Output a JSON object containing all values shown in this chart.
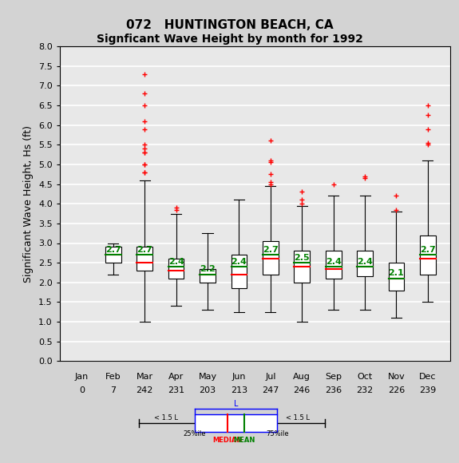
{
  "title1": "072   HUNTINGTON BEACH, CA",
  "title2": "Signficant Wave Height by month for 1992",
  "ylabel": "Significant Wave Height, Hs (ft)",
  "months": [
    "Jan",
    "Feb",
    "Mar",
    "Apr",
    "May",
    "Jun",
    "Jul",
    "Aug",
    "Sep",
    "Oct",
    "Nov",
    "Dec"
  ],
  "counts": [
    0,
    7,
    242,
    231,
    203,
    213,
    247,
    246,
    236,
    232,
    226,
    239
  ],
  "ylim": [
    0.0,
    8.0
  ],
  "yticks": [
    0.0,
    0.5,
    1.0,
    1.5,
    2.0,
    2.5,
    3.0,
    3.5,
    4.0,
    4.5,
    5.0,
    5.5,
    6.0,
    6.5,
    7.0,
    7.5,
    8.0
  ],
  "boxes": [
    null,
    {
      "q1": 2.5,
      "median": 2.7,
      "q3": 2.9,
      "mean": 2.7,
      "whisker_low": 2.2,
      "whisker_high": 3.0,
      "outliers_low": [],
      "outliers_high": []
    },
    {
      "q1": 2.3,
      "median": 2.5,
      "q3": 2.9,
      "mean": 2.7,
      "whisker_low": 1.0,
      "whisker_high": 4.6,
      "outliers_low": [],
      "outliers_high": [
        4.8,
        4.8,
        5.0,
        5.0,
        5.3,
        5.3,
        5.4,
        5.5,
        5.9,
        6.1,
        6.5,
        6.8,
        7.3
      ]
    },
    {
      "q1": 2.1,
      "median": 2.3,
      "q3": 2.6,
      "mean": 2.4,
      "whisker_low": 1.4,
      "whisker_high": 3.75,
      "outliers_low": [],
      "outliers_high": [
        3.85,
        3.9
      ]
    },
    {
      "q1": 2.0,
      "median": 2.2,
      "q3": 2.35,
      "mean": 2.2,
      "whisker_low": 1.3,
      "whisker_high": 3.25,
      "outliers_low": [],
      "outliers_high": []
    },
    {
      "q1": 1.85,
      "median": 2.2,
      "q3": 2.7,
      "mean": 2.4,
      "whisker_low": 1.25,
      "whisker_high": 4.1,
      "outliers_low": [],
      "outliers_high": []
    },
    {
      "q1": 2.2,
      "median": 2.6,
      "q3": 3.05,
      "mean": 2.7,
      "whisker_low": 1.25,
      "whisker_high": 4.45,
      "outliers_low": [],
      "outliers_high": [
        4.5,
        4.55,
        4.75,
        5.05,
        5.1,
        5.6
      ]
    },
    {
      "q1": 2.0,
      "median": 2.4,
      "q3": 2.8,
      "mean": 2.5,
      "whisker_low": 1.0,
      "whisker_high": 3.95,
      "outliers_low": [],
      "outliers_high": [
        4.0,
        4.1,
        4.3
      ]
    },
    {
      "q1": 2.1,
      "median": 2.35,
      "q3": 2.8,
      "mean": 2.4,
      "whisker_low": 1.3,
      "whisker_high": 4.2,
      "outliers_low": [],
      "outliers_high": [
        4.5
      ]
    },
    {
      "q1": 2.15,
      "median": 2.4,
      "q3": 2.8,
      "mean": 2.4,
      "whisker_low": 1.3,
      "whisker_high": 4.2,
      "outliers_low": [],
      "outliers_high": [
        4.65,
        4.7
      ]
    },
    {
      "q1": 1.8,
      "median": 2.1,
      "q3": 2.5,
      "mean": 2.1,
      "whisker_low": 1.1,
      "whisker_high": 3.8,
      "outliers_low": [],
      "outliers_high": [
        3.85,
        4.2
      ]
    },
    {
      "q1": 2.2,
      "median": 2.6,
      "q3": 3.2,
      "mean": 2.7,
      "whisker_low": 1.5,
      "whisker_high": 5.1,
      "outliers_low": [],
      "outliers_high": [
        5.5,
        5.55,
        5.9,
        6.25,
        6.5
      ]
    }
  ],
  "box_color": "#ffffff",
  "box_edge_color": "#000000",
  "median_color": "#ff0000",
  "mean_color": "#008000",
  "whisker_color": "#000000",
  "outlier_color": "#ff0000",
  "bg_color": "#e8e8e8",
  "grid_color": "#ffffff",
  "mean_label_color": "#008000",
  "mean_label_fontsize": 8
}
